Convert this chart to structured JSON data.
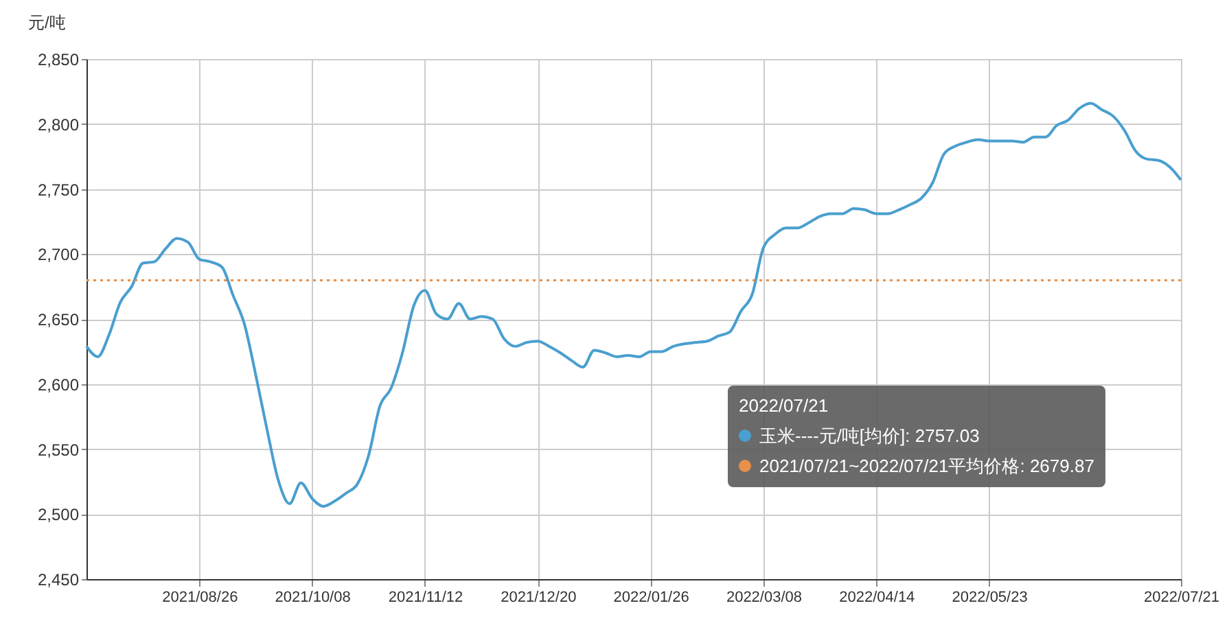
{
  "chart_data": {
    "type": "line",
    "ylabel": "元/吨",
    "categories": [
      null,
      null,
      null,
      null,
      null,
      null,
      null,
      null,
      null,
      null,
      "2021/08/26",
      null,
      null,
      null,
      null,
      null,
      null,
      null,
      null,
      null,
      "2021/10/08",
      null,
      null,
      null,
      null,
      null,
      null,
      null,
      null,
      null,
      "2021/11/12",
      null,
      null,
      null,
      null,
      null,
      null,
      null,
      null,
      null,
      "2021/12/20",
      null,
      null,
      null,
      null,
      null,
      null,
      null,
      null,
      null,
      "2022/01/26",
      null,
      null,
      null,
      null,
      null,
      null,
      null,
      null,
      null,
      "2022/03/08",
      null,
      null,
      null,
      null,
      null,
      null,
      null,
      null,
      null,
      "2022/04/14",
      null,
      null,
      null,
      null,
      null,
      null,
      null,
      null,
      null,
      "2022/05/23",
      null,
      null,
      null,
      null,
      null,
      null,
      null,
      null,
      null,
      null,
      null,
      null,
      null,
      null,
      null,
      null,
      "2022/07/21"
    ],
    "series": [
      {
        "color": "#4a9fcf",
        "values": [
          2629,
          2621,
          2638,
          2663,
          2675,
          2693,
          2694,
          2704,
          2712,
          2709,
          2696,
          2694,
          2690,
          2668,
          2646,
          2607,
          2565,
          2526,
          2508,
          2524,
          2512,
          2506,
          2510,
          2516,
          2523,
          2545,
          2583,
          2597,
          2624,
          2660,
          2672,
          2654,
          2650,
          2662,
          2650,
          2652,
          2650,
          2635,
          2629,
          2632,
          2633,
          2629,
          2624,
          2618,
          2613,
          2626,
          2624,
          2621,
          2622,
          2621,
          2625,
          2625,
          2629,
          2631,
          2632,
          2633,
          2637,
          2640,
          2656,
          2669,
          2705,
          2715,
          2720,
          2720,
          2724,
          2729,
          2731,
          2731,
          2735,
          2734,
          2731,
          2731,
          2734,
          2738,
          2743,
          2755,
          2777,
          2783,
          2786,
          2788,
          2787,
          2787,
          2787,
          2786,
          2790,
          2790,
          2799,
          2803,
          2812,
          2816,
          2811,
          2806,
          2795,
          2779,
          2773,
          2772,
          2767,
          2757
        ]
      }
    ],
    "ylim": [
      2450,
      2850
    ],
    "yticks": [
      {
        "value": 2450,
        "label": "2,450"
      },
      {
        "value": 2500,
        "label": "2,500"
      },
      {
        "value": 2550,
        "label": "2,550"
      },
      {
        "value": 2600,
        "label": "2,600"
      },
      {
        "value": 2650,
        "label": "2,650"
      },
      {
        "value": 2700,
        "label": "2,700"
      },
      {
        "value": 2750,
        "label": "2,750"
      },
      {
        "value": 2800,
        "label": "2,800"
      },
      {
        "value": 2850,
        "label": "2,850"
      }
    ],
    "grid": true,
    "ref_lines": [
      {
        "axis": "y",
        "value": 2679.87,
        "color": "#e8904a",
        "line_style": "dotted"
      }
    ],
    "annotations": [
      "2022/07/21",
      "玉米----元/吨[均价]: 2757.03",
      "2021/07/21~2022/07/21平均价格: 2679.87"
    ]
  }
}
